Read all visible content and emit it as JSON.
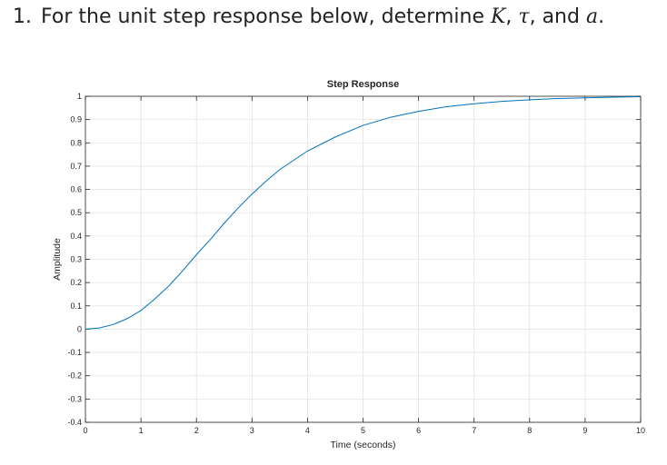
{
  "question": {
    "number": "1.",
    "text_before": "For the unit step response below, determine ",
    "sym_k": "K",
    "sep1": ", ",
    "sym_tau": "τ",
    "sep2": ", and ",
    "sym_a": "a",
    "text_after": "."
  },
  "chart_data": {
    "type": "line",
    "title": "Step Response",
    "xlabel": "Time (seconds)",
    "ylabel": "Amplitude",
    "xlim": [
      0,
      10
    ],
    "ylim": [
      -0.4,
      1
    ],
    "xticks": [
      0,
      1,
      2,
      3,
      4,
      5,
      6,
      7,
      8,
      9,
      10
    ],
    "yticks": [
      -0.4,
      -0.3,
      -0.2,
      -0.1,
      0,
      0.1,
      0.2,
      0.3,
      0.4,
      0.5,
      0.6,
      0.7,
      0.8,
      0.9,
      1
    ],
    "grid": true,
    "line_color": "#0072BD",
    "series": [
      {
        "x": [
          0,
          0.25,
          0.5,
          0.75,
          1,
          1.25,
          1.5,
          1.75,
          2,
          2.25,
          2.5,
          2.75,
          3,
          3.25,
          3.5,
          3.75,
          4,
          4.5,
          5,
          5.5,
          6,
          6.5,
          7,
          7.5,
          8,
          8.5,
          9,
          9.5,
          10
        ],
        "values": [
          0,
          0.005,
          0.02,
          0.045,
          0.08,
          0.13,
          0.185,
          0.25,
          0.32,
          0.385,
          0.455,
          0.52,
          0.58,
          0.635,
          0.685,
          0.725,
          0.765,
          0.825,
          0.875,
          0.91,
          0.935,
          0.955,
          0.968,
          0.978,
          0.985,
          0.99,
          0.993,
          0.996,
          0.998
        ]
      }
    ]
  }
}
